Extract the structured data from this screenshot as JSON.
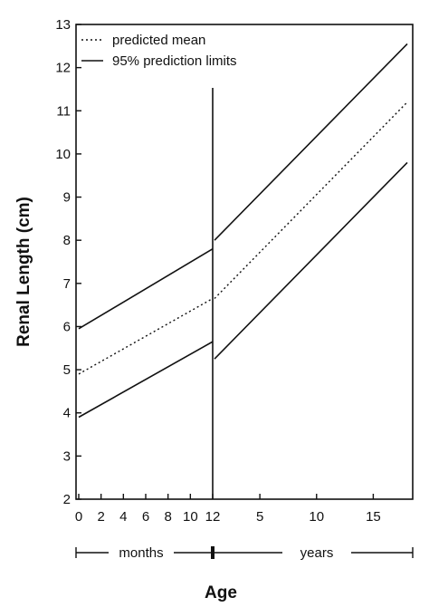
{
  "chart_data": {
    "type": "line",
    "title": "",
    "ylabel": "Renal Length (cm)",
    "xlabel": "Age",
    "ylim": [
      2,
      13
    ],
    "y_ticks": [
      2,
      3,
      4,
      5,
      6,
      7,
      8,
      9,
      10,
      11,
      12,
      13
    ],
    "months_axis": {
      "ticks": [
        "0",
        "2",
        "4",
        "6",
        "8",
        "10",
        "12"
      ],
      "range": [
        0,
        12
      ]
    },
    "years_axis": {
      "ticks": [
        "5",
        "10",
        "15"
      ],
      "range": [
        1,
        18
      ]
    },
    "scale_segments": {
      "months_label": "months",
      "years_label": "years"
    },
    "legend": {
      "position": "top-left"
    },
    "series": [
      {
        "name": "predicted mean",
        "style": "dotted",
        "months": {
          "x": [
            0,
            12
          ],
          "y": [
            4.9,
            6.65
          ]
        },
        "years": {
          "x": [
            1,
            18
          ],
          "y": [
            6.65,
            11.2
          ]
        }
      },
      {
        "name": "95% prediction limits",
        "style": "solid",
        "bound": "upper",
        "months": {
          "x": [
            0,
            12
          ],
          "y": [
            5.95,
            7.8
          ]
        },
        "years": {
          "x": [
            1,
            18
          ],
          "y": [
            8.0,
            12.55
          ]
        }
      },
      {
        "name": "",
        "style": "solid",
        "bound": "lower",
        "months": {
          "x": [
            0,
            12
          ],
          "y": [
            3.9,
            5.65
          ]
        },
        "years": {
          "x": [
            1,
            18
          ],
          "y": [
            5.25,
            9.8
          ]
        }
      }
    ]
  }
}
